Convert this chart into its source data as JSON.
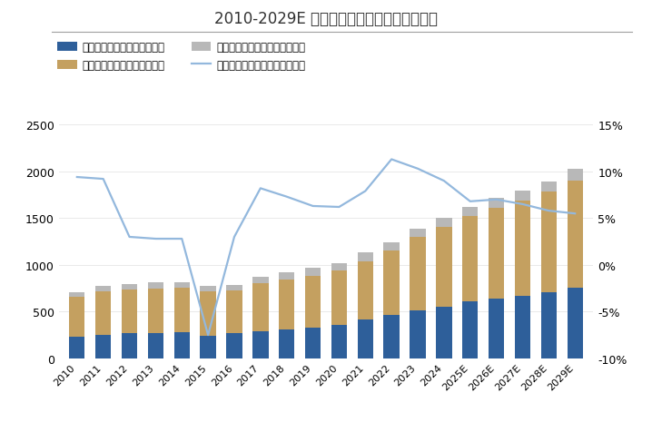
{
  "years": [
    "2010",
    "2011",
    "2012",
    "2013",
    "2014",
    "2015",
    "2016",
    "2017",
    "2018",
    "2019",
    "2020",
    "2021",
    "2022",
    "2023",
    "2024",
    "2025E",
    "2026E",
    "2027E",
    "2028E",
    "2029E"
  ],
  "cat_food": [
    230,
    255,
    270,
    275,
    285,
    245,
    275,
    290,
    310,
    330,
    360,
    420,
    465,
    510,
    550,
    610,
    640,
    665,
    710,
    755
  ],
  "dog_food": [
    425,
    465,
    465,
    475,
    470,
    475,
    455,
    510,
    535,
    555,
    580,
    620,
    685,
    790,
    860,
    915,
    975,
    1020,
    1075,
    1150
  ],
  "other_food": [
    50,
    55,
    60,
    60,
    55,
    55,
    60,
    75,
    75,
    80,
    80,
    90,
    90,
    85,
    90,
    95,
    100,
    110,
    110,
    120
  ],
  "yoy": [
    9.4,
    9.2,
    3.0,
    2.8,
    2.8,
    -7.5,
    3.0,
    8.2,
    7.3,
    6.3,
    6.2,
    7.9,
    11.3,
    10.3,
    9.0,
    6.8,
    7.0,
    6.5,
    5.8,
    5.5
  ],
  "cat_color": "#2e5f9a",
  "dog_color": "#c4a060",
  "other_color": "#b8b8b8",
  "line_color": "#93b8dd",
  "title": "2010-2029E 全球宠物食品行业销售额及增速",
  "legend_cat": "宠物猫食品销售额（亿美元）",
  "legend_dog": "宠物犬食品销售额（亿美元）",
  "legend_other": "其他宠物食品销售额（亿美元）",
  "legend_line": "宠物食品总销售额同比（右轴）",
  "ylim_left": [
    0,
    2500
  ],
  "ylim_right": [
    -10,
    15
  ],
  "yticks_right": [
    -10,
    -5,
    0,
    5,
    10,
    15
  ],
  "yticks_left": [
    0,
    500,
    1000,
    1500,
    2000,
    2500
  ],
  "background_color": "#ffffff",
  "separator_color": "#a0a0a0"
}
